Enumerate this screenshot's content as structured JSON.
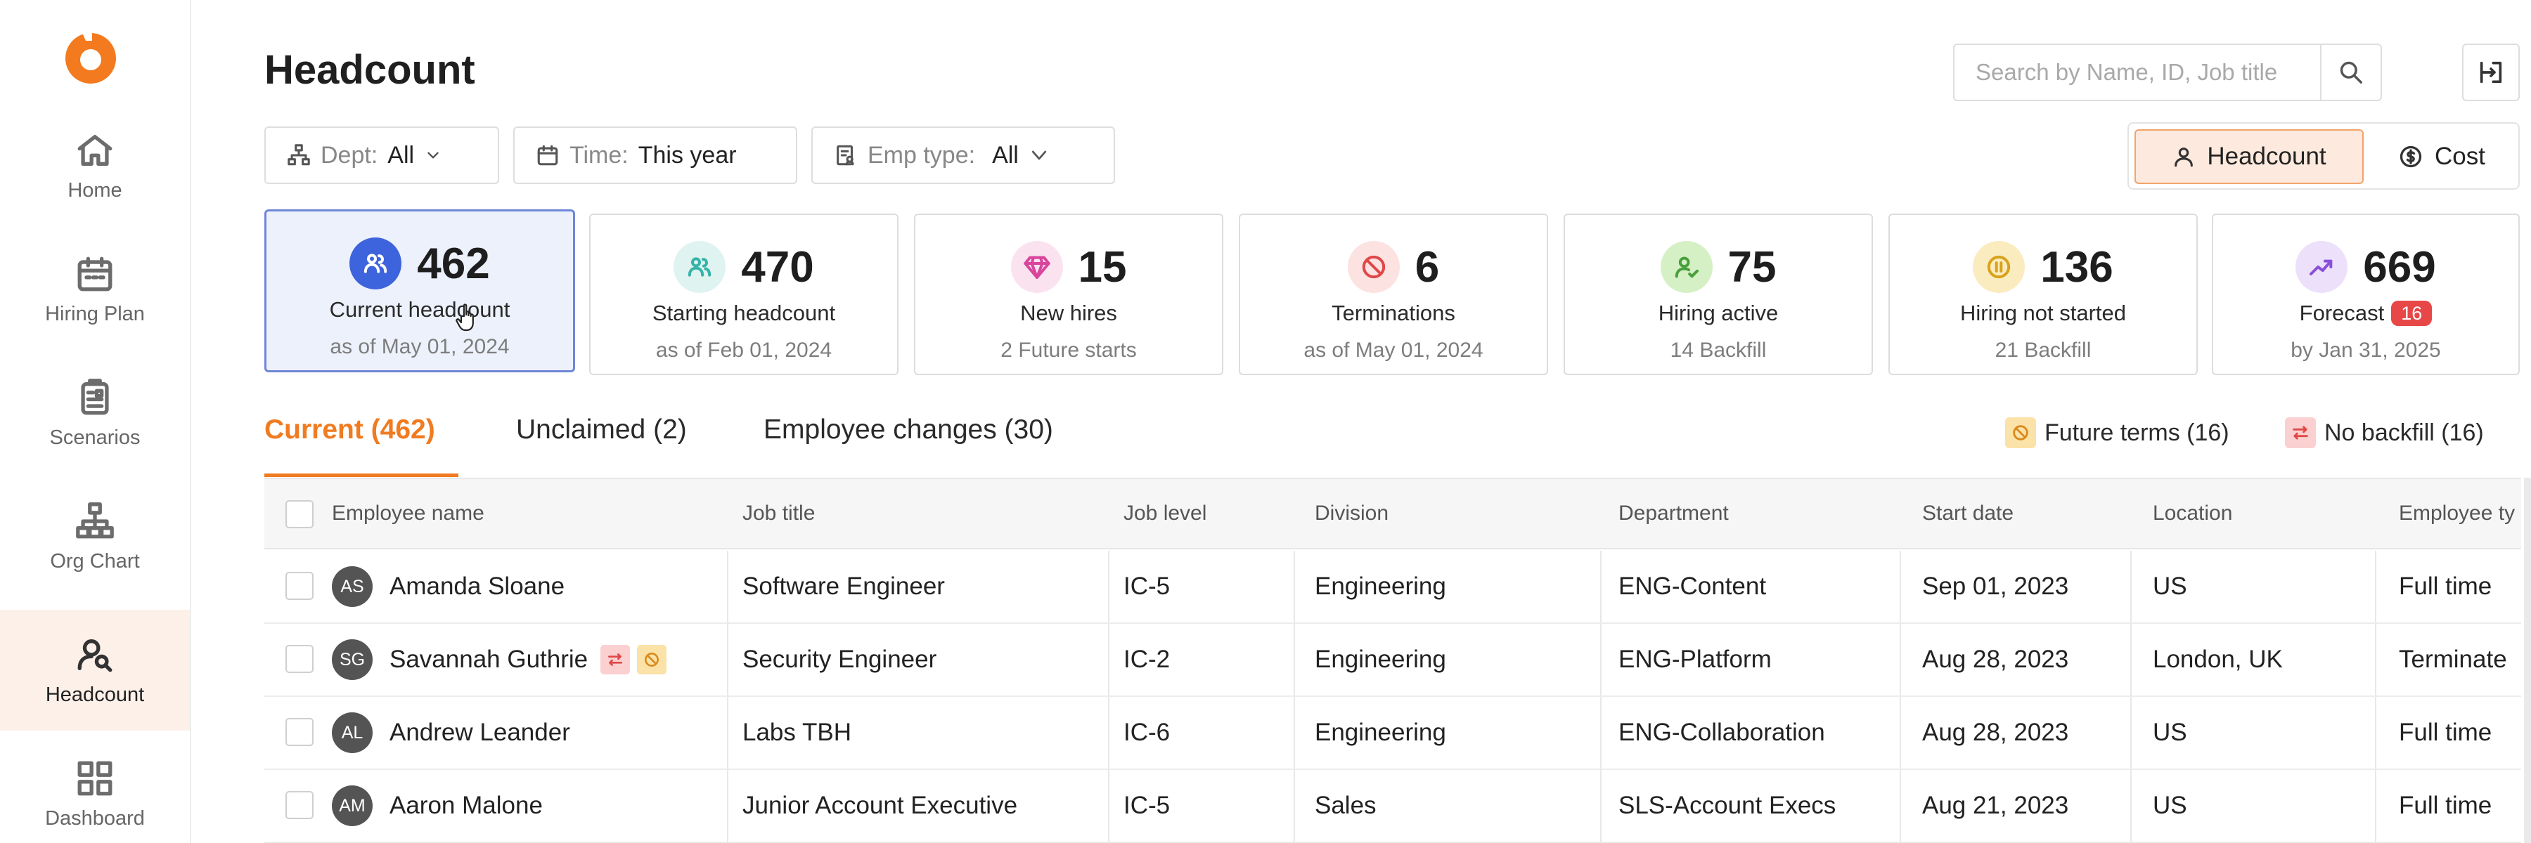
{
  "sidebar": {
    "items": [
      {
        "label": "Home"
      },
      {
        "label": "Hiring Plan"
      },
      {
        "label": "Scenarios"
      },
      {
        "label": "Org Chart"
      },
      {
        "label": "Headcount"
      },
      {
        "label": "Dashboard"
      }
    ],
    "active": "Headcount"
  },
  "header": {
    "title": "Headcount",
    "search_placeholder": "Search by Name, ID, Job title"
  },
  "filters": {
    "dept": {
      "label": "Dept:",
      "value": "All"
    },
    "time": {
      "label": "Time:",
      "value": "This year"
    },
    "emp_type": {
      "label": "Emp type:",
      "value": "All"
    }
  },
  "view_toggle": {
    "headcount": "Headcount",
    "cost": "Cost",
    "selected": "Headcount"
  },
  "cards": [
    {
      "value": "462",
      "label": "Current headcount",
      "sub": "as of May 01, 2024",
      "icon": "users-icon",
      "color": "#3d63dd"
    },
    {
      "value": "470",
      "label": "Starting headcount",
      "sub": "as of Feb 01, 2024",
      "icon": "users-icon",
      "color": "#36b3a8"
    },
    {
      "value": "15",
      "label": "New hires",
      "sub": "2 Future starts",
      "icon": "diamond-icon",
      "color": "#d9449c"
    },
    {
      "value": "6",
      "label": "Terminations",
      "sub": "as of May 01, 2024",
      "icon": "ban-icon",
      "color": "#e04848"
    },
    {
      "value": "75",
      "label": "Hiring active",
      "sub": "14 Backfill",
      "icon": "user-check-icon",
      "color": "#4aa03c"
    },
    {
      "value": "136",
      "label": "Hiring not started",
      "sub": "21 Backfill",
      "icon": "pause-icon",
      "color": "#d9a21b"
    },
    {
      "value": "669",
      "label": "Forecast",
      "badge": "16",
      "sub": "by Jan 31, 2025",
      "icon": "trend-icon",
      "color": "#8a4fd8"
    }
  ],
  "tabs": [
    {
      "label": "Current (462)"
    },
    {
      "label": "Unclaimed (2)"
    },
    {
      "label": "Employee changes (30)"
    }
  ],
  "legend": {
    "future_terms": "Future terms (16)",
    "no_backfill": "No backfill (16)"
  },
  "table": {
    "columns": [
      "Employee name",
      "Job title",
      "Job level",
      "Division",
      "Department",
      "Start date",
      "Location",
      "Employee ty"
    ],
    "rows": [
      {
        "initials": "AS",
        "name": "Amanda Sloane",
        "job_title": "Software Engineer",
        "level": "IC-5",
        "division": "Engineering",
        "department": "ENG-Content",
        "start": "Sep 01, 2023",
        "location": "US",
        "type": "Full time"
      },
      {
        "initials": "SG",
        "name": "Savannah Guthrie",
        "job_title": "Security Engineer",
        "level": "IC-2",
        "division": "Engineering",
        "department": "ENG-Platform",
        "start": "Aug 28, 2023",
        "location": "London, UK",
        "type": "Terminate"
      },
      {
        "initials": "AL",
        "name": "Andrew Leander",
        "job_title": "Labs TBH",
        "level": "IC-6",
        "division": "Engineering",
        "department": "ENG-Collaboration",
        "start": "Aug 28, 2023",
        "location": "US",
        "type": "Full time"
      },
      {
        "initials": "AM",
        "name": "Aaron Malone",
        "job_title": "Junior Account Executive",
        "level": "IC-5",
        "division": "Sales",
        "department": "SLS-Account Execs",
        "start": "Aug 21, 2023",
        "location": "US",
        "type": "Full time"
      }
    ]
  },
  "colors": {
    "accent": "#f07b20",
    "selected_card_border": "#6e86d8",
    "selected_card_bg": "#edf1fb"
  }
}
